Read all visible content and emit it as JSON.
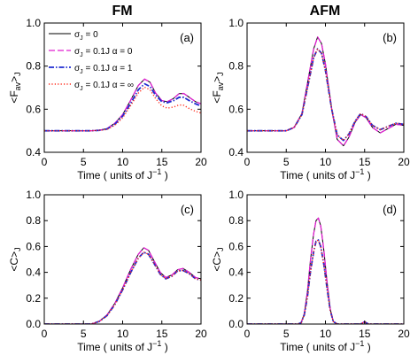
{
  "figure": {
    "column_titles": [
      "FM",
      "AFM"
    ]
  },
  "legend": {
    "entries": [
      {
        "label": "σJ = 0",
        "series": "s0"
      },
      {
        "label": "σJ = 0.1J  α = 0",
        "series": "s1"
      },
      {
        "label": "σJ = 0.1J  α = 1",
        "series": "s2"
      },
      {
        "label": "σJ = 0.1J  α = ∞",
        "series": "s3"
      }
    ]
  },
  "series_styles": {
    "s0": {
      "color": "#000000",
      "dash": "",
      "width": 1
    },
    "s1": {
      "color": "#e01fd0",
      "dash": "7,3",
      "width": 1.3
    },
    "s2": {
      "color": "#1f2bd0",
      "dash": "6,2,1.5,2",
      "width": 1.8
    },
    "s3": {
      "color": "#ff2a1a",
      "dash": "1.2,2.2",
      "width": 1.4
    }
  },
  "chart_data": [
    {
      "panel": "(a)",
      "type": "line",
      "xlabel": "Time ( units of J⁻¹ )",
      "ylabel": "<Fav>J",
      "xlim": [
        0,
        20
      ],
      "ylim": [
        0.4,
        1.0
      ],
      "xticks": [
        0,
        5,
        10,
        15,
        20
      ],
      "yticks": [
        0.4,
        0.6,
        0.8,
        1.0
      ],
      "x": [
        0,
        5,
        6,
        7,
        8,
        9,
        10,
        11,
        12,
        12.8,
        13.5,
        14.2,
        15,
        15.7,
        16.5,
        17.2,
        17.8,
        18.5,
        19.3,
        20
      ],
      "series": [
        {
          "name": "σJ = 0",
          "key": "s0",
          "values": [
            0.5,
            0.5,
            0.5,
            0.502,
            0.51,
            0.535,
            0.575,
            0.64,
            0.71,
            0.74,
            0.725,
            0.675,
            0.64,
            0.635,
            0.65,
            0.672,
            0.673,
            0.655,
            0.635,
            0.625
          ]
        },
        {
          "name": "σJ = 0.1J  α = 0",
          "key": "s1",
          "values": [
            0.5,
            0.5,
            0.5,
            0.502,
            0.51,
            0.535,
            0.575,
            0.64,
            0.71,
            0.74,
            0.725,
            0.675,
            0.64,
            0.635,
            0.65,
            0.672,
            0.673,
            0.655,
            0.635,
            0.625
          ]
        },
        {
          "name": "σJ = 0.1J  α = 1",
          "key": "s2",
          "values": [
            0.5,
            0.5,
            0.5,
            0.502,
            0.508,
            0.53,
            0.568,
            0.625,
            0.69,
            0.718,
            0.705,
            0.665,
            0.635,
            0.63,
            0.64,
            0.655,
            0.655,
            0.64,
            0.625,
            0.615
          ]
        },
        {
          "name": "σJ = 0.1J  α = ∞",
          "key": "s3",
          "values": [
            0.5,
            0.5,
            0.5,
            0.502,
            0.506,
            0.525,
            0.56,
            0.615,
            0.675,
            0.702,
            0.69,
            0.65,
            0.615,
            0.605,
            0.61,
            0.62,
            0.618,
            0.603,
            0.59,
            0.582
          ]
        }
      ]
    },
    {
      "panel": "(b)",
      "type": "line",
      "xlabel": "Time ( units of J⁻¹ )",
      "ylabel": "<Fav>J",
      "xlim": [
        0,
        20
      ],
      "ylim": [
        0.4,
        1.0
      ],
      "xticks": [
        0,
        5,
        10,
        15,
        20
      ],
      "yticks": [
        0.4,
        0.6,
        0.8,
        1.0
      ],
      "x": [
        0,
        4,
        5,
        6,
        7,
        8,
        8.5,
        9,
        9.5,
        10,
        10.8,
        11.5,
        12.3,
        13,
        13.8,
        14.5,
        15.2,
        16,
        17,
        18,
        19,
        20
      ],
      "series": [
        {
          "name": "σJ = 0",
          "key": "s0",
          "values": [
            0.5,
            0.5,
            0.5,
            0.515,
            0.58,
            0.78,
            0.88,
            0.935,
            0.905,
            0.81,
            0.6,
            0.46,
            0.43,
            0.47,
            0.54,
            0.575,
            0.56,
            0.515,
            0.49,
            0.51,
            0.53,
            0.525
          ]
        },
        {
          "name": "σJ = 0.1J  α = 0",
          "key": "s1",
          "values": [
            0.5,
            0.5,
            0.5,
            0.515,
            0.58,
            0.78,
            0.88,
            0.935,
            0.905,
            0.81,
            0.6,
            0.46,
            0.43,
            0.47,
            0.54,
            0.575,
            0.56,
            0.515,
            0.49,
            0.51,
            0.53,
            0.525
          ]
        },
        {
          "name": "σJ = 0.1J  α = 1",
          "key": "s2",
          "values": [
            0.5,
            0.5,
            0.5,
            0.515,
            0.575,
            0.75,
            0.84,
            0.88,
            0.86,
            0.78,
            0.6,
            0.48,
            0.455,
            0.485,
            0.545,
            0.58,
            0.565,
            0.525,
            0.505,
            0.52,
            0.535,
            0.53
          ]
        },
        {
          "name": "σJ = 0.1J  α = ∞",
          "key": "s3",
          "values": [
            0.5,
            0.5,
            0.5,
            0.515,
            0.575,
            0.75,
            0.84,
            0.88,
            0.86,
            0.78,
            0.6,
            0.48,
            0.455,
            0.485,
            0.545,
            0.58,
            0.565,
            0.525,
            0.505,
            0.52,
            0.535,
            0.53
          ]
        }
      ]
    },
    {
      "panel": "(c)",
      "type": "line",
      "xlabel": "Time ( units of J⁻¹ )",
      "ylabel": "<C>J",
      "xlim": [
        0,
        20
      ],
      "ylim": [
        0,
        1.0
      ],
      "xticks": [
        0,
        5,
        10,
        15,
        20
      ],
      "yticks": [
        0.0,
        0.2,
        0.4,
        0.6,
        0.8,
        1.0
      ],
      "x": [
        0,
        5,
        6,
        6.5,
        7,
        8,
        9,
        10,
        11,
        12,
        12.7,
        13.3,
        14,
        14.8,
        15.5,
        16.3,
        17,
        17.7,
        18.5,
        19.3,
        20
      ],
      "series": [
        {
          "name": "σJ = 0",
          "key": "s0",
          "values": [
            0,
            0,
            0,
            0.01,
            0.02,
            0.07,
            0.16,
            0.28,
            0.42,
            0.54,
            0.59,
            0.57,
            0.49,
            0.4,
            0.36,
            0.38,
            0.42,
            0.43,
            0.4,
            0.36,
            0.35
          ]
        },
        {
          "name": "σJ = 0.1J  α = 0",
          "key": "s1",
          "values": [
            0,
            0,
            0,
            0.01,
            0.02,
            0.07,
            0.16,
            0.28,
            0.42,
            0.54,
            0.59,
            0.57,
            0.49,
            0.4,
            0.36,
            0.38,
            0.42,
            0.43,
            0.4,
            0.36,
            0.35
          ]
        },
        {
          "name": "σJ = 0.1J  α = 1",
          "key": "s2",
          "values": [
            0,
            0,
            0,
            0.01,
            0.02,
            0.065,
            0.15,
            0.265,
            0.395,
            0.51,
            0.555,
            0.54,
            0.47,
            0.385,
            0.35,
            0.37,
            0.41,
            0.415,
            0.39,
            0.35,
            0.34
          ]
        },
        {
          "name": "σJ = 0.1J  α = ∞",
          "key": "s3",
          "values": [
            0,
            0,
            0,
            0.01,
            0.02,
            0.065,
            0.15,
            0.265,
            0.395,
            0.51,
            0.555,
            0.54,
            0.47,
            0.385,
            0.35,
            0.37,
            0.41,
            0.415,
            0.39,
            0.35,
            0.34
          ]
        }
      ]
    },
    {
      "panel": "(d)",
      "type": "line",
      "xlabel": "Time ( units of J⁻¹ )",
      "ylabel": "<C>J",
      "xlim": [
        0,
        20
      ],
      "ylim": [
        0,
        1.0
      ],
      "xticks": [
        0,
        5,
        10,
        15,
        20
      ],
      "yticks": [
        0.0,
        0.2,
        0.4,
        0.6,
        0.8,
        1.0
      ],
      "x": [
        0,
        6.5,
        6.9,
        7.3,
        7.7,
        8.1,
        8.5,
        8.8,
        9.1,
        9.4,
        9.8,
        10.2,
        10.6,
        11,
        11.5,
        14.5,
        15,
        15.5,
        16,
        20
      ],
      "series": [
        {
          "name": "σJ = 0",
          "key": "s0",
          "values": [
            0,
            0,
            0.01,
            0.08,
            0.25,
            0.5,
            0.7,
            0.8,
            0.82,
            0.76,
            0.57,
            0.33,
            0.12,
            0.02,
            0,
            0,
            0.02,
            0,
            0,
            0
          ]
        },
        {
          "name": "σJ = 0.1J  α = 0",
          "key": "s1",
          "values": [
            0,
            0,
            0.01,
            0.08,
            0.25,
            0.5,
            0.7,
            0.8,
            0.82,
            0.76,
            0.57,
            0.33,
            0.12,
            0.02,
            0,
            0,
            0.02,
            0,
            0,
            0
          ]
        },
        {
          "name": "σJ = 0.1J  α = 1",
          "key": "s2",
          "values": [
            0,
            0,
            0.01,
            0.07,
            0.21,
            0.41,
            0.56,
            0.64,
            0.65,
            0.6,
            0.46,
            0.28,
            0.11,
            0.02,
            0,
            0,
            0.015,
            0,
            0,
            0
          ]
        },
        {
          "name": "σJ = 0.1J  α = ∞",
          "key": "s3",
          "values": [
            0,
            0,
            0.01,
            0.07,
            0.21,
            0.41,
            0.56,
            0.64,
            0.65,
            0.6,
            0.46,
            0.28,
            0.11,
            0.02,
            0,
            0,
            0.015,
            0,
            0,
            0
          ]
        }
      ]
    }
  ]
}
